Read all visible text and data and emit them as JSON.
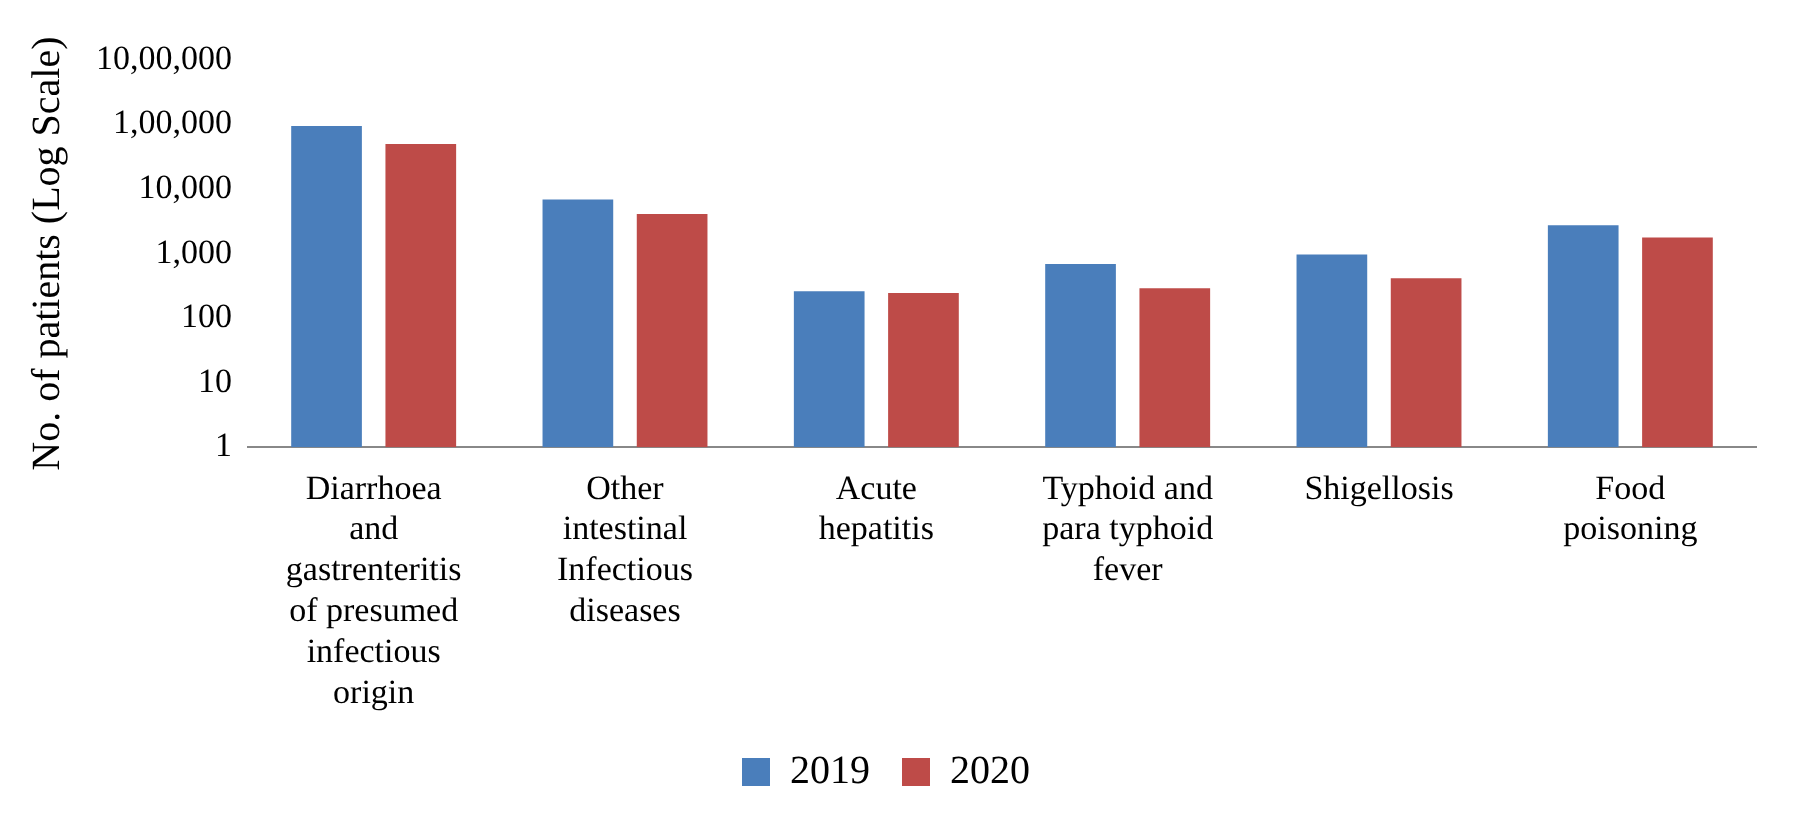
{
  "chart_data": {
    "type": "bar",
    "ylabel": "No. of patients (Log Scale)",
    "log": "y",
    "categories": [
      "Diarrhoea and gastrenteritis of presumed infectious origin",
      "Other intestinal Infectious diseases",
      "Acute hepatitis",
      "Typhoid and para typhoid fever",
      "Shigellosis",
      "Food poisoning"
    ],
    "series": [
      {
        "name": "2019",
        "color": "#4a7ebb",
        "values": [
          95000,
          6900,
          260,
          690,
          970,
          2750
        ]
      },
      {
        "name": "2020",
        "color": "#be4b48",
        "values": [
          50000,
          4100,
          245,
          290,
          415,
          1770
        ]
      }
    ],
    "ylim": [
      1,
      1000000
    ],
    "yticks": [
      1,
      10,
      100,
      {
        "value": 1000,
        "label": "1,000"
      },
      {
        "value": 10000,
        "label": "10,000"
      },
      {
        "value": 100000,
        "label": "1,00,000"
      },
      {
        "value": 1000000,
        "label": "10,00,000"
      }
    ],
    "grid": false,
    "legend": "bottom"
  }
}
